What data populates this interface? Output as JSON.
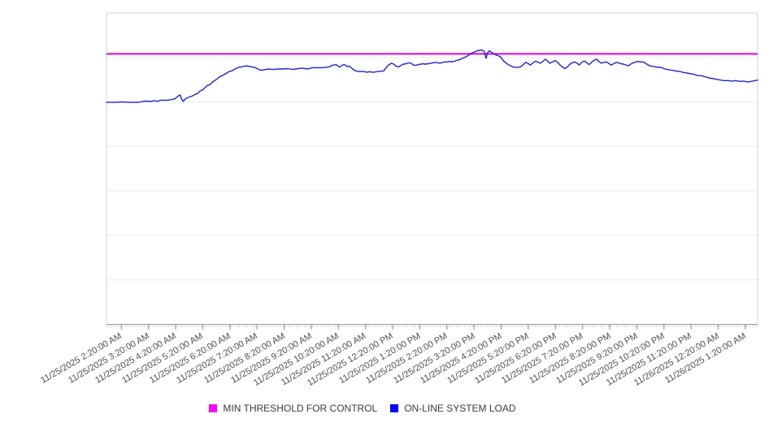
{
  "chart_data": {
    "type": "line",
    "title": "",
    "xlabel": "",
    "ylabel": "",
    "x_axis": {
      "tick_labels": [
        "11/25/2025 2:20:00 AM",
        "11/25/2025 3:20:00 AM",
        "11/25/2025 4:20:00 AM",
        "11/25/2025 5:20:00 AM",
        "11/25/2025 6:20:00 AM",
        "11/25/2025 7:20:00 AM",
        "11/25/2025 8:20:00 AM",
        "11/25/2025 9:20:00 AM",
        "11/25/2025 10:20:00 AM",
        "11/25/2025 11:20:00 AM",
        "11/25/2025 12:20:00 PM",
        "11/25/2025 1:20:00 PM",
        "11/25/2025 2:20:00 PM",
        "11/25/2025 3:20:00 PM",
        "11/25/2025 4:20:00 PM",
        "11/25/2025 5:20:00 PM",
        "11/25/2025 6:20:00 PM",
        "11/25/2025 7:20:00 PM",
        "11/25/2025 8:20:00 PM",
        "11/25/2025 9:20:00 PM",
        "11/25/2025 10:20:00 PM",
        "11/25/2025 11:20:00 PM",
        "11/26/2025 12:20:00 AM",
        "11/26/2025 1:20:00 AM"
      ],
      "label_rotation_deg": -30,
      "major_ticks": 24,
      "minor_ticks_per_major": 10
    },
    "y_axis": {
      "labels_visible": false,
      "gridline_rows": 7,
      "note": "No y-axis tick labels are shown in the chart; series values below are expressed in gridline units where 0 = x-axis baseline and 7 = top border of the plot."
    },
    "grid": "horizontal-only",
    "legend_position": "bottom-center",
    "series": [
      {
        "name": "MIN THRESHOLD FOR CONTROL",
        "type": "horizontal-threshold-line",
        "color": "#e100e1",
        "swatch_color": "#ff00ff",
        "value": 6.08
      },
      {
        "name": "ON-LINE SYSTEM LOAD",
        "type": "line",
        "color": "#2222cc",
        "swatch_color": "#0000ff",
        "points": [
          [
            0.0,
            4.99
          ],
          [
            0.013,
            4.99
          ],
          [
            0.025,
            5.0
          ],
          [
            0.036,
            4.99
          ],
          [
            0.049,
            4.99
          ],
          [
            0.055,
            5.01
          ],
          [
            0.061,
            5.02
          ],
          [
            0.068,
            5.01
          ],
          [
            0.074,
            5.03
          ],
          [
            0.078,
            5.01
          ],
          [
            0.083,
            5.04
          ],
          [
            0.093,
            5.04
          ],
          [
            0.099,
            5.05
          ],
          [
            0.105,
            5.07
          ],
          [
            0.109,
            5.12
          ],
          [
            0.113,
            5.16
          ],
          [
            0.115,
            5.08
          ],
          [
            0.118,
            5.01
          ],
          [
            0.121,
            5.07
          ],
          [
            0.125,
            5.1
          ],
          [
            0.129,
            5.12
          ],
          [
            0.133,
            5.14
          ],
          [
            0.136,
            5.17
          ],
          [
            0.14,
            5.19
          ],
          [
            0.144,
            5.25
          ],
          [
            0.148,
            5.27
          ],
          [
            0.151,
            5.32
          ],
          [
            0.155,
            5.37
          ],
          [
            0.159,
            5.39
          ],
          [
            0.163,
            5.45
          ],
          [
            0.166,
            5.48
          ],
          [
            0.17,
            5.52
          ],
          [
            0.174,
            5.57
          ],
          [
            0.178,
            5.59
          ],
          [
            0.181,
            5.62
          ],
          [
            0.185,
            5.65
          ],
          [
            0.189,
            5.69
          ],
          [
            0.193,
            5.7
          ],
          [
            0.196,
            5.73
          ],
          [
            0.2,
            5.76
          ],
          [
            0.204,
            5.78
          ],
          [
            0.208,
            5.79
          ],
          [
            0.211,
            5.8
          ],
          [
            0.215,
            5.81
          ],
          [
            0.219,
            5.8
          ],
          [
            0.223,
            5.79
          ],
          [
            0.226,
            5.78
          ],
          [
            0.23,
            5.76
          ],
          [
            0.234,
            5.73
          ],
          [
            0.238,
            5.71
          ],
          [
            0.241,
            5.72
          ],
          [
            0.245,
            5.73
          ],
          [
            0.249,
            5.74
          ],
          [
            0.256,
            5.73
          ],
          [
            0.264,
            5.74
          ],
          [
            0.271,
            5.74
          ],
          [
            0.279,
            5.75
          ],
          [
            0.286,
            5.73
          ],
          [
            0.294,
            5.75
          ],
          [
            0.301,
            5.76
          ],
          [
            0.309,
            5.74
          ],
          [
            0.316,
            5.77
          ],
          [
            0.324,
            5.77
          ],
          [
            0.331,
            5.77
          ],
          [
            0.339,
            5.78
          ],
          [
            0.343,
            5.79
          ],
          [
            0.346,
            5.82
          ],
          [
            0.35,
            5.83
          ],
          [
            0.353,
            5.84
          ],
          [
            0.355,
            5.81
          ],
          [
            0.358,
            5.78
          ],
          [
            0.36,
            5.81
          ],
          [
            0.363,
            5.83
          ],
          [
            0.365,
            5.84
          ],
          [
            0.368,
            5.82
          ],
          [
            0.37,
            5.79
          ],
          [
            0.373,
            5.81
          ],
          [
            0.375,
            5.78
          ],
          [
            0.378,
            5.74
          ],
          [
            0.381,
            5.71
          ],
          [
            0.385,
            5.69
          ],
          [
            0.389,
            5.68
          ],
          [
            0.393,
            5.69
          ],
          [
            0.396,
            5.68
          ],
          [
            0.4,
            5.67
          ],
          [
            0.404,
            5.68
          ],
          [
            0.408,
            5.67
          ],
          [
            0.411,
            5.67
          ],
          [
            0.415,
            5.68
          ],
          [
            0.419,
            5.69
          ],
          [
            0.423,
            5.69
          ],
          [
            0.426,
            5.7
          ],
          [
            0.43,
            5.78
          ],
          [
            0.434,
            5.84
          ],
          [
            0.438,
            5.87
          ],
          [
            0.441,
            5.85
          ],
          [
            0.445,
            5.8
          ],
          [
            0.449,
            5.79
          ],
          [
            0.453,
            5.83
          ],
          [
            0.456,
            5.85
          ],
          [
            0.46,
            5.86
          ],
          [
            0.464,
            5.88
          ],
          [
            0.468,
            5.87
          ],
          [
            0.471,
            5.83
          ],
          [
            0.475,
            5.82
          ],
          [
            0.479,
            5.84
          ],
          [
            0.483,
            5.85
          ],
          [
            0.486,
            5.86
          ],
          [
            0.49,
            5.85
          ],
          [
            0.494,
            5.86
          ],
          [
            0.498,
            5.87
          ],
          [
            0.501,
            5.88
          ],
          [
            0.505,
            5.89
          ],
          [
            0.509,
            5.88
          ],
          [
            0.513,
            5.87
          ],
          [
            0.516,
            5.89
          ],
          [
            0.52,
            5.9
          ],
          [
            0.524,
            5.9
          ],
          [
            0.528,
            5.91
          ],
          [
            0.531,
            5.9
          ],
          [
            0.535,
            5.92
          ],
          [
            0.539,
            5.94
          ],
          [
            0.543,
            5.95
          ],
          [
            0.546,
            5.98
          ],
          [
            0.55,
            6.0
          ],
          [
            0.554,
            6.03
          ],
          [
            0.558,
            6.07
          ],
          [
            0.561,
            6.1
          ],
          [
            0.565,
            6.12
          ],
          [
            0.569,
            6.15
          ],
          [
            0.573,
            6.16
          ],
          [
            0.576,
            6.17
          ],
          [
            0.58,
            6.14
          ],
          [
            0.583,
            5.98
          ],
          [
            0.585,
            6.1
          ],
          [
            0.588,
            6.15
          ],
          [
            0.591,
            6.12
          ],
          [
            0.595,
            6.08
          ],
          [
            0.599,
            6.05
          ],
          [
            0.603,
            6.03
          ],
          [
            0.606,
            6.0
          ],
          [
            0.61,
            5.92
          ],
          [
            0.614,
            5.87
          ],
          [
            0.618,
            5.83
          ],
          [
            0.621,
            5.81
          ],
          [
            0.625,
            5.78
          ],
          [
            0.629,
            5.78
          ],
          [
            0.633,
            5.78
          ],
          [
            0.636,
            5.79
          ],
          [
            0.64,
            5.84
          ],
          [
            0.644,
            5.89
          ],
          [
            0.648,
            5.86
          ],
          [
            0.651,
            5.83
          ],
          [
            0.655,
            5.88
          ],
          [
            0.659,
            5.92
          ],
          [
            0.663,
            5.89
          ],
          [
            0.666,
            5.87
          ],
          [
            0.67,
            5.91
          ],
          [
            0.674,
            5.96
          ],
          [
            0.678,
            5.91
          ],
          [
            0.681,
            5.87
          ],
          [
            0.685,
            5.9
          ],
          [
            0.689,
            5.93
          ],
          [
            0.693,
            5.89
          ],
          [
            0.696,
            5.84
          ],
          [
            0.7,
            5.79
          ],
          [
            0.704,
            5.75
          ],
          [
            0.708,
            5.79
          ],
          [
            0.711,
            5.84
          ],
          [
            0.715,
            5.88
          ],
          [
            0.719,
            5.9
          ],
          [
            0.723,
            5.87
          ],
          [
            0.726,
            5.83
          ],
          [
            0.73,
            5.89
          ],
          [
            0.734,
            5.92
          ],
          [
            0.738,
            5.88
          ],
          [
            0.741,
            5.84
          ],
          [
            0.745,
            5.89
          ],
          [
            0.749,
            5.94
          ],
          [
            0.753,
            5.96
          ],
          [
            0.756,
            5.91
          ],
          [
            0.76,
            5.87
          ],
          [
            0.764,
            5.89
          ],
          [
            0.768,
            5.9
          ],
          [
            0.771,
            5.87
          ],
          [
            0.775,
            5.83
          ],
          [
            0.779,
            5.86
          ],
          [
            0.783,
            5.89
          ],
          [
            0.786,
            5.88
          ],
          [
            0.79,
            5.86
          ],
          [
            0.794,
            5.85
          ],
          [
            0.798,
            5.83
          ],
          [
            0.801,
            5.81
          ],
          [
            0.805,
            5.85
          ],
          [
            0.809,
            5.88
          ],
          [
            0.813,
            5.9
          ],
          [
            0.816,
            5.91
          ],
          [
            0.82,
            5.9
          ],
          [
            0.824,
            5.9
          ],
          [
            0.828,
            5.87
          ],
          [
            0.831,
            5.84
          ],
          [
            0.835,
            5.81
          ],
          [
            0.839,
            5.8
          ],
          [
            0.843,
            5.79
          ],
          [
            0.846,
            5.78
          ],
          [
            0.85,
            5.78
          ],
          [
            0.854,
            5.76
          ],
          [
            0.858,
            5.74
          ],
          [
            0.861,
            5.73
          ],
          [
            0.865,
            5.72
          ],
          [
            0.869,
            5.71
          ],
          [
            0.873,
            5.7
          ],
          [
            0.876,
            5.69
          ],
          [
            0.88,
            5.69
          ],
          [
            0.884,
            5.67
          ],
          [
            0.888,
            5.66
          ],
          [
            0.891,
            5.65
          ],
          [
            0.895,
            5.64
          ],
          [
            0.899,
            5.63
          ],
          [
            0.903,
            5.62
          ],
          [
            0.906,
            5.6
          ],
          [
            0.91,
            5.59
          ],
          [
            0.914,
            5.59
          ],
          [
            0.918,
            5.57
          ],
          [
            0.921,
            5.56
          ],
          [
            0.925,
            5.54
          ],
          [
            0.929,
            5.53
          ],
          [
            0.933,
            5.52
          ],
          [
            0.936,
            5.51
          ],
          [
            0.94,
            5.5
          ],
          [
            0.944,
            5.49
          ],
          [
            0.948,
            5.48
          ],
          [
            0.951,
            5.48
          ],
          [
            0.955,
            5.48
          ],
          [
            0.959,
            5.47
          ],
          [
            0.963,
            5.47
          ],
          [
            0.966,
            5.48
          ],
          [
            0.97,
            5.47
          ],
          [
            0.974,
            5.46
          ],
          [
            0.978,
            5.47
          ],
          [
            0.981,
            5.46
          ],
          [
            0.985,
            5.45
          ],
          [
            0.989,
            5.46
          ],
          [
            0.993,
            5.47
          ],
          [
            0.996,
            5.48
          ],
          [
            1.0,
            5.49
          ]
        ]
      }
    ]
  },
  "legend": {
    "items": [
      {
        "label": "MIN THRESHOLD FOR CONTROL",
        "swatch_color": "#ff00ff"
      },
      {
        "label": "ON-LINE SYSTEM LOAD",
        "swatch_color": "#0000ff"
      }
    ]
  },
  "colors": {
    "background": "#ffffff",
    "plot_border": "#d6d6d6",
    "axis_line": "#9a9a9a",
    "gridline": "#ececec",
    "minor_tick": "#c4c4c4",
    "major_tick": "#8a8a8a",
    "axis_label_text": "#4d4d4d",
    "legend_text": "#3a3a3a"
  }
}
